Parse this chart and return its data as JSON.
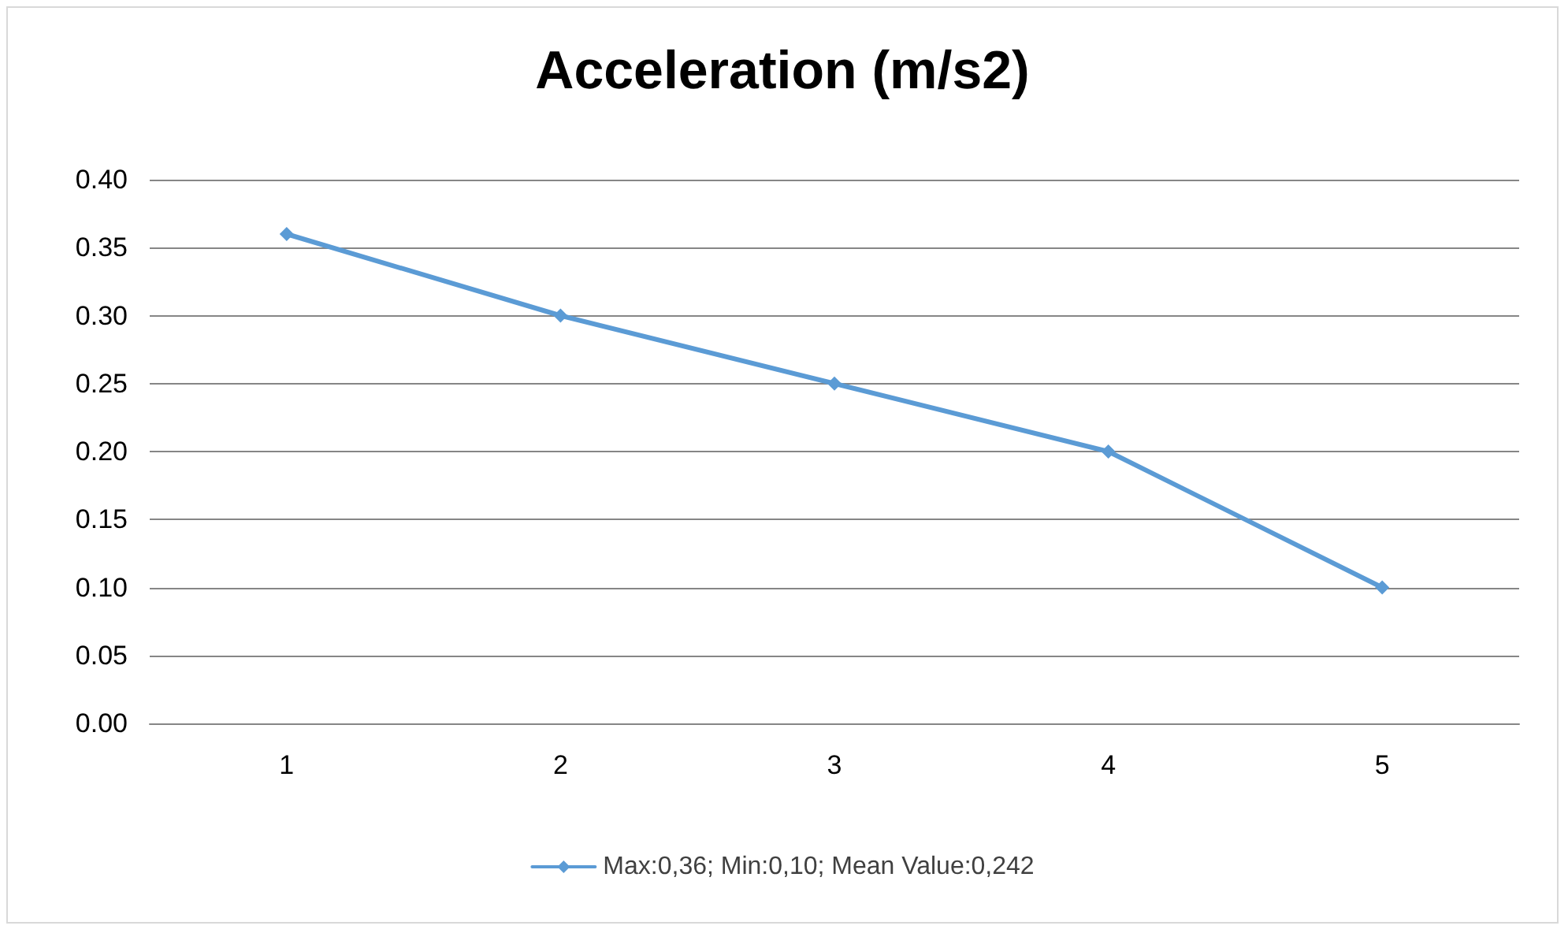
{
  "chart_data": {
    "type": "line",
    "title": "Acceleration (m/s2)",
    "categories": [
      "1",
      "2",
      "3",
      "4",
      "5"
    ],
    "series": [
      {
        "name": "Max:0,36; Min:0,10; Mean Value:0,242",
        "color": "#5b9bd5",
        "values": [
          0.36,
          0.3,
          0.25,
          0.2,
          0.1
        ]
      }
    ],
    "ylim": [
      0,
      0.4
    ],
    "yticks": [
      {
        "value": 0,
        "label": "0.00"
      },
      {
        "value": 0.05,
        "label": "0.05"
      },
      {
        "value": 0.1,
        "label": "0.10"
      },
      {
        "value": 0.15,
        "label": "0.15"
      },
      {
        "value": 0.2,
        "label": "0.20"
      },
      {
        "value": 0.25,
        "label": "0.25"
      },
      {
        "value": 0.3,
        "label": "0.30"
      },
      {
        "value": 0.35,
        "label": "0.35"
      },
      {
        "value": 0.4,
        "label": "0.40"
      }
    ],
    "grid": "y",
    "legend": "bottom",
    "marker": "diamond",
    "line_style": "solid"
  }
}
